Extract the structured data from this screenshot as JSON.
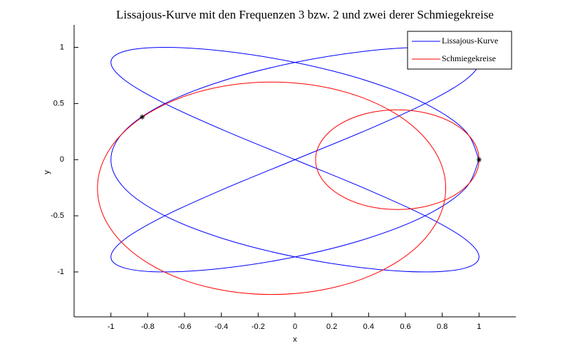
{
  "chart_data": {
    "type": "lissajous",
    "title": "Lissajous-Kurve mit den Frequenzen 3 bzw. 2 und zwei derer Schmiegekreise",
    "x_label": "x",
    "y_label": "y",
    "xlim": [
      -1.2,
      1.2
    ],
    "ylim": [
      -1.4,
      1.2
    ],
    "xticks": [
      -1,
      -0.8,
      -0.6,
      -0.4,
      -0.2,
      0,
      0.2,
      0.4,
      0.6,
      0.8,
      1
    ],
    "yticks": [
      -1,
      -0.5,
      0,
      0.5,
      1
    ],
    "legend": "upper right",
    "series": [
      {
        "name": "Lissajous-Kurve",
        "color": "#0000ff",
        "x": [
          1,
          0.9239,
          0.7071,
          0.3827,
          0,
          -0.3827,
          -0.7071,
          -0.9239,
          -1,
          -0.9239,
          -0.7071,
          -0.3827,
          0,
          0.3827,
          0.7071,
          0.9239,
          1,
          0.9239,
          0.7071,
          0.3827,
          0,
          -0.3827,
          -0.7071,
          -0.9239,
          -1,
          -0.9239,
          -0.7071,
          -0.3827,
          0,
          0.3827,
          0.7071,
          0.9239,
          1,
          0.9239,
          0.7071,
          0.3827,
          0,
          -0.3827,
          -0.7071,
          -0.9239,
          -1,
          -0.9239,
          -0.7071,
          -0.3827,
          0,
          0.3827,
          0.7071,
          0.9239,
          1
        ],
        "y": [
          0,
          0.2588,
          0.5,
          0.7071,
          0.866,
          0.9659,
          1,
          0.9659,
          0.866,
          0.7071,
          0.5,
          0.2588,
          0,
          -0.2588,
          -0.5,
          -0.7071,
          -0.866,
          -0.9659,
          -1,
          -0.9659,
          -0.866,
          -0.7071,
          -0.5,
          -0.2588,
          0,
          0.2588,
          0.5,
          0.7071,
          0.866,
          0.9659,
          1,
          0.9659,
          0.866,
          0.7071,
          0.5,
          0.2588,
          0,
          -0.2588,
          -0.5,
          -0.7071,
          -0.866,
          -0.9659,
          -1,
          -0.9659,
          -0.866,
          -0.7071,
          -0.5,
          -0.2588,
          0
        ]
      },
      {
        "name": "Schmiegekreise",
        "color": "#ff0000",
        "circles": [
          {
            "cx": 0.556,
            "cy": 0,
            "r": 0.444
          },
          {
            "cx": -0.127,
            "cy": -0.255,
            "r": 0.946
          }
        ]
      }
    ],
    "points": {
      "x": [
        1,
        -0.83
      ],
      "y": [
        0,
        0.38
      ],
      "color": "#000000"
    }
  }
}
